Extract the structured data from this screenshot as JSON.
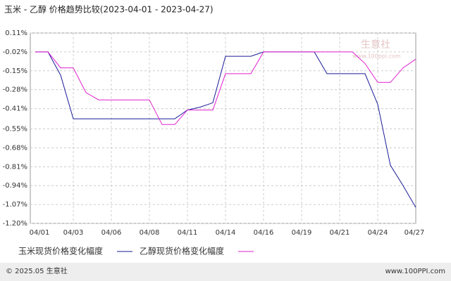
{
  "chart_data": {
    "type": "line",
    "title": "玉米 - 乙醇 价格趋势比较(2023-04-01 - 2023-04-27)",
    "watermark": "生意社",
    "watermark_url": "www.100ppi.com",
    "categories": [
      "04/01",
      null,
      null,
      "04/03",
      null,
      null,
      "04/06",
      null,
      null,
      "04/08",
      null,
      null,
      "04/11",
      null,
      null,
      "04/14",
      null,
      null,
      "04/16",
      null,
      null,
      "04/19",
      null,
      null,
      "04/21",
      null,
      null,
      "04/24",
      null,
      null,
      "04/27"
    ],
    "series": [
      {
        "name": "玉米现货价格变化幅度",
        "color": "#1a1a99",
        "values": [
          -0.02,
          -0.02,
          -0.18,
          -0.48,
          -0.48,
          -0.48,
          -0.48,
          -0.48,
          -0.48,
          -0.48,
          -0.48,
          -0.48,
          -0.42,
          -0.4,
          -0.37,
          -0.05,
          -0.05,
          -0.05,
          -0.02,
          -0.02,
          -0.02,
          -0.02,
          -0.02,
          -0.17,
          -0.17,
          -0.17,
          -0.17,
          -0.38,
          -0.8,
          -0.94,
          -1.09
        ]
      },
      {
        "name": "乙醇现货价格变化幅度",
        "color": "#e020d0",
        "values": [
          -0.02,
          -0.02,
          -0.13,
          -0.13,
          -0.3,
          -0.35,
          -0.35,
          -0.35,
          -0.35,
          -0.35,
          -0.52,
          -0.52,
          -0.42,
          -0.42,
          -0.42,
          -0.17,
          -0.17,
          -0.17,
          -0.02,
          -0.02,
          -0.02,
          -0.02,
          -0.02,
          -0.02,
          -0.02,
          -0.02,
          -0.1,
          -0.23,
          -0.23,
          -0.13,
          -0.07
        ]
      }
    ],
    "ylim": [
      -1.2,
      0.11
    ],
    "yticks": [
      {
        "value": 0.11,
        "label": "0.11%"
      },
      {
        "value": -0.02,
        "label": "-0.02%"
      },
      {
        "value": -0.15,
        "label": "-0.15%"
      },
      {
        "value": -0.28,
        "label": "-0.28%"
      },
      {
        "value": -0.41,
        "label": "-0.41%"
      },
      {
        "value": -0.55,
        "label": "-0.55%"
      },
      {
        "value": -0.68,
        "label": "-0.68%"
      },
      {
        "value": -0.81,
        "label": "-0.81%"
      },
      {
        "value": -0.94,
        "label": "-0.94%"
      },
      {
        "value": -1.07,
        "label": "-1.07%"
      },
      {
        "value": -1.2,
        "label": "-1.20%"
      }
    ],
    "grid": true,
    "footer_left": "© 2025.05 生意社",
    "footer_right": "www.100PPI.com"
  }
}
